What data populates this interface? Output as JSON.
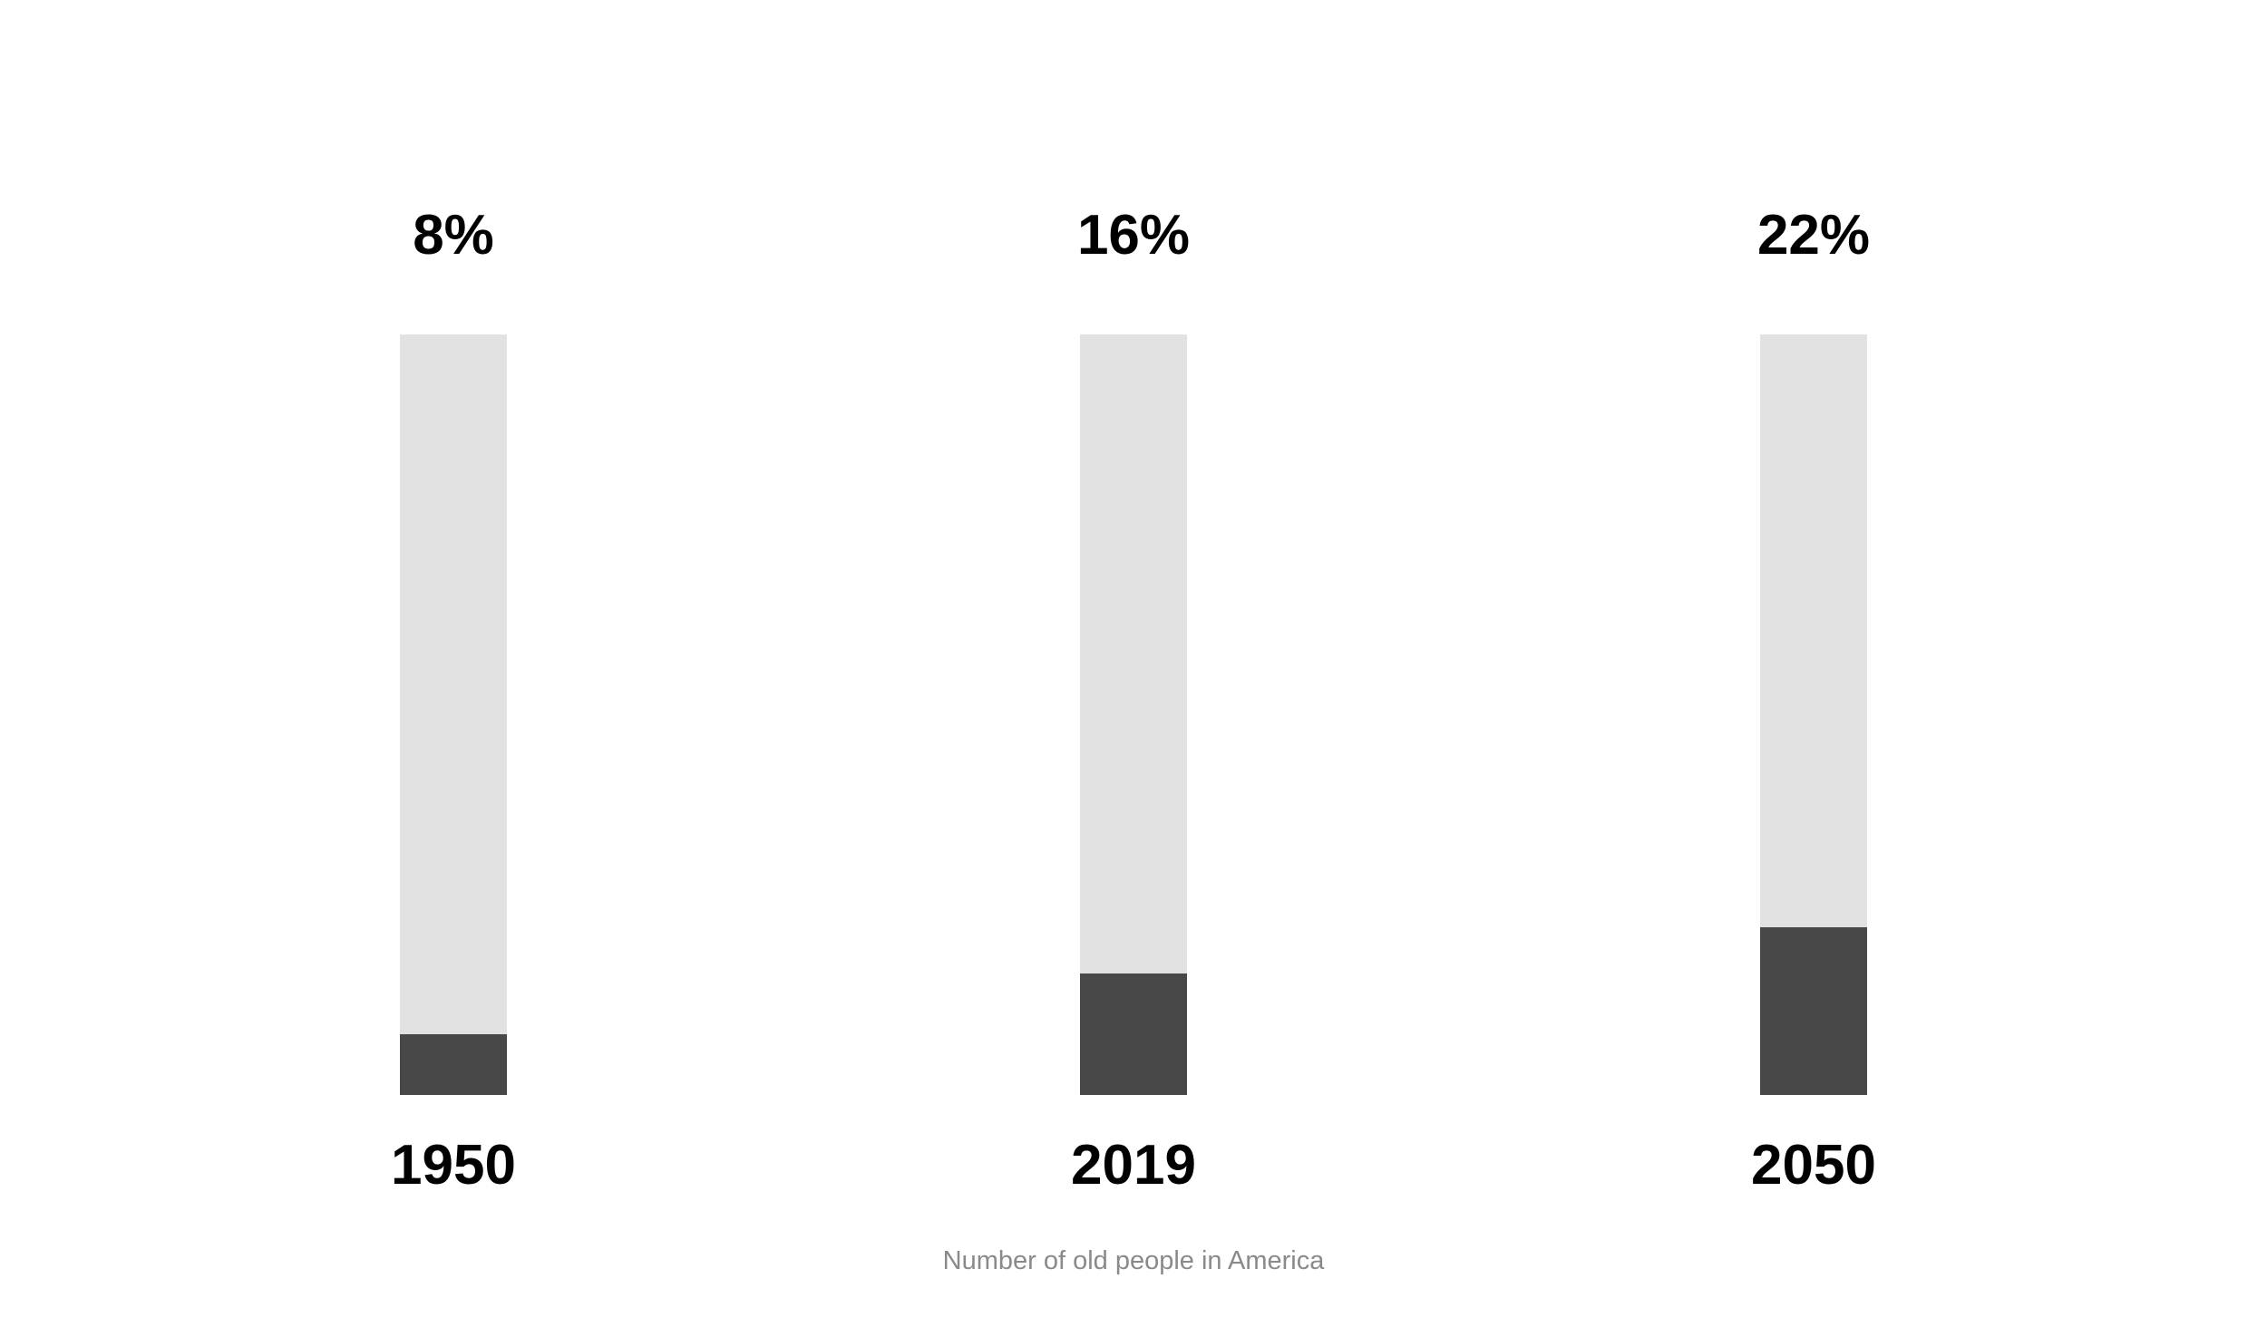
{
  "chart_data": {
    "type": "bar",
    "subtype": "filled-progress-columns",
    "categories": [
      "1950",
      "2019",
      "2050"
    ],
    "values": [
      8,
      16,
      22
    ],
    "value_labels": [
      "8%",
      "16%",
      "22%"
    ],
    "title": "Number of old people in America",
    "xlabel": "",
    "ylabel": "",
    "ylim": [
      0,
      100
    ],
    "unit": "percent",
    "legend": false,
    "grid": false,
    "colors": {
      "track": "#e2e2e2",
      "fill": "#484848",
      "label_text": "#000000",
      "caption_text": "#8a8a8a"
    }
  }
}
